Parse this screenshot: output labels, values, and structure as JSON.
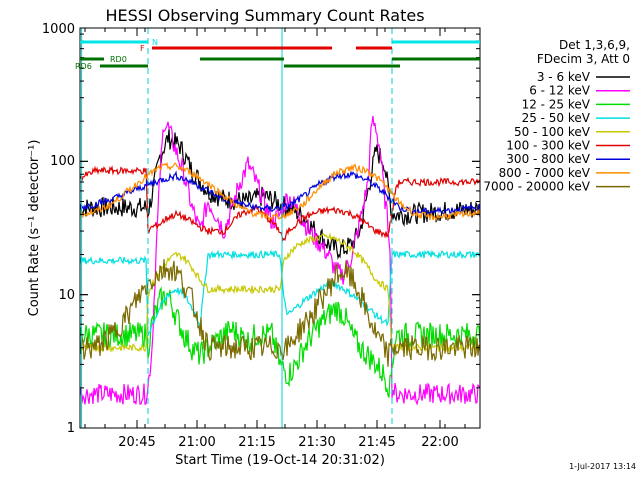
{
  "chart_data": {
    "type": "line",
    "title": "HESSI Observing Summary Count Rates",
    "xlabel": "Start Time (19-Oct-14 20:31:02)",
    "ylabel": "Count Rate (s⁻¹ detector⁻¹)",
    "yscale": "log",
    "ylim": [
      1,
      1000
    ],
    "xlim_minutes_after_start": [
      0,
      100
    ],
    "x_ticks": [
      "20:45",
      "21:00",
      "21:15",
      "21:30",
      "21:45",
      "22:00"
    ],
    "y_ticks": [
      "1",
      "10",
      "100",
      "1000"
    ],
    "legend_header": [
      "Det 1,3,6,9,",
      "FDecim 3, Att 0"
    ],
    "legend_position": "right",
    "footer": "1-Jul-2017 13:14",
    "flags": [
      {
        "label": "N",
        "color": "#00e5e5",
        "segments": [
          [
            0,
            17
          ],
          [
            78,
            100
          ]
        ]
      },
      {
        "label": "F",
        "color": "#e00000",
        "segments": [
          [
            18,
            63
          ],
          [
            69,
            78
          ]
        ]
      },
      {
        "label": "RD0",
        "color": "#007000",
        "segments": [
          [
            0,
            6
          ],
          [
            30,
            51
          ],
          [
            78,
            100
          ]
        ]
      },
      {
        "label": "RD6",
        "color": "#007000",
        "segments": [
          [
            5,
            17
          ],
          [
            51,
            80
          ]
        ]
      }
    ],
    "series": [
      {
        "name": "3 - 6 keV",
        "color": "#000000",
        "x": [
          0,
          10,
          16.5,
          17,
          18,
          20,
          22,
          25,
          28,
          32,
          36,
          42,
          46,
          50,
          52,
          54,
          56,
          58,
          60,
          62,
          64,
          66,
          68,
          70,
          72,
          74,
          76,
          77.5,
          78,
          79,
          82,
          90,
          100
        ],
        "y": [
          45,
          45,
          45,
          42,
          55,
          110,
          150,
          130,
          85,
          60,
          52,
          50,
          55,
          48,
          45,
          42,
          38,
          32,
          28,
          24,
          22,
          22,
          24,
          30,
          60,
          120,
          100,
          50,
          42,
          40,
          40,
          42,
          44
        ]
      },
      {
        "name": "6 - 12 keV",
        "color": "#ff00ff",
        "x": [
          0,
          10,
          16.5,
          17,
          18,
          19,
          20,
          21,
          22,
          24,
          26,
          28,
          30,
          32,
          34,
          36,
          38,
          40,
          42,
          44,
          46,
          48,
          50,
          52,
          54,
          56,
          58,
          60,
          62,
          64,
          66,
          68,
          70,
          72,
          73,
          74,
          75,
          76,
          77.5,
          78,
          79,
          82,
          90,
          100
        ],
        "y": [
          1.8,
          1.8,
          1.8,
          2,
          4,
          20,
          80,
          200,
          180,
          120,
          80,
          45,
          30,
          50,
          40,
          30,
          45,
          70,
          95,
          70,
          50,
          35,
          40,
          55,
          45,
          35,
          28,
          24,
          20,
          15,
          14,
          20,
          35,
          70,
          200,
          180,
          120,
          60,
          25,
          2,
          1.8,
          1.8,
          1.8,
          1.8
        ]
      },
      {
        "name": "12 - 25 keV",
        "color": "#00dd00",
        "x": [
          0,
          10,
          16.5,
          17,
          18,
          20,
          22,
          24,
          26,
          28,
          30,
          32,
          34,
          36,
          38,
          40,
          42,
          44,
          46,
          48,
          50,
          52,
          54,
          56,
          58,
          60,
          62,
          64,
          66,
          68,
          70,
          72,
          74,
          76,
          77.5,
          78,
          79,
          82,
          90,
          100
        ],
        "y": [
          5,
          5,
          5,
          4,
          6,
          9,
          10,
          7,
          5,
          4,
          3.5,
          4,
          4.5,
          5,
          5.5,
          5,
          4.5,
          5,
          5,
          5,
          3,
          2.5,
          3,
          4,
          5,
          6,
          7,
          8,
          7,
          5,
          4,
          3.5,
          3,
          2.5,
          2,
          3,
          5,
          5,
          5,
          5
        ]
      },
      {
        "name": "25 - 50 keV",
        "color": "#00e0e0",
        "x": [
          0,
          10,
          16.5,
          17,
          18,
          20,
          22,
          24,
          26,
          28,
          30,
          32,
          50,
          51,
          52,
          54,
          56,
          58,
          60,
          62,
          64,
          66,
          68,
          70,
          72,
          74,
          77,
          78,
          80,
          100
        ],
        "y": [
          18,
          18,
          18,
          5,
          6,
          8,
          10,
          11,
          10,
          8,
          6,
          20,
          20,
          9,
          7,
          8,
          9,
          10,
          11,
          12,
          12,
          11,
          10,
          9,
          8,
          7,
          6,
          20,
          20,
          20
        ]
      },
      {
        "name": "50 - 100 keV",
        "color": "#c8c800",
        "x": [
          0,
          10,
          16.5,
          17,
          18,
          20,
          22,
          24,
          26,
          28,
          30,
          32,
          50,
          51,
          52,
          54,
          56,
          58,
          60,
          62,
          64,
          66,
          68,
          70,
          72,
          74,
          77,
          78,
          80,
          100
        ],
        "y": [
          4,
          4,
          4,
          10,
          12,
          15,
          18,
          20,
          19,
          16,
          13,
          11,
          11,
          18,
          20,
          23,
          25,
          26,
          27,
          27,
          26,
          24,
          22,
          19,
          16,
          13,
          11,
          4,
          4,
          4
        ]
      },
      {
        "name": "100 - 300 keV",
        "color": "#e00000",
        "x": [
          0,
          4,
          10,
          16.5,
          17,
          18,
          20,
          22,
          24,
          26,
          28,
          30,
          32,
          36,
          40,
          44,
          48,
          50,
          51,
          52,
          54,
          56,
          58,
          60,
          62,
          64,
          66,
          68,
          70,
          72,
          74,
          77,
          78,
          79,
          80,
          90,
          100
        ],
        "y": [
          75,
          85,
          85,
          85,
          30,
          32,
          34,
          38,
          40,
          38,
          35,
          32,
          30,
          30,
          40,
          45,
          35,
          30,
          25,
          30,
          34,
          38,
          40,
          42,
          43,
          43,
          42,
          40,
          37,
          33,
          30,
          28,
          40,
          65,
          70,
          70,
          70
        ]
      },
      {
        "name": "300 - 800 keV",
        "color": "#0000dd",
        "x": [
          0,
          4,
          8,
          12,
          16,
          20,
          24,
          28,
          32,
          36,
          40,
          44,
          48,
          52,
          56,
          60,
          64,
          68,
          72,
          76,
          80,
          84,
          88,
          92,
          96,
          100
        ],
        "y": [
          45,
          48,
          52,
          58,
          65,
          72,
          78,
          70,
          60,
          52,
          48,
          45,
          44,
          46,
          55,
          68,
          78,
          80,
          72,
          58,
          45,
          42,
          42,
          43,
          44,
          45
        ]
      },
      {
        "name": "800 - 7000 keV",
        "color": "#ff8c00",
        "x": [
          0,
          4,
          8,
          12,
          16,
          20,
          24,
          28,
          32,
          36,
          40,
          44,
          48,
          52,
          56,
          60,
          64,
          68,
          72,
          76,
          80,
          84,
          88,
          92,
          96,
          100
        ],
        "y": [
          40,
          42,
          48,
          60,
          75,
          90,
          92,
          82,
          68,
          55,
          45,
          40,
          38,
          40,
          48,
          65,
          82,
          90,
          85,
          68,
          48,
          40,
          38,
          39,
          40,
          42
        ]
      },
      {
        "name": "7000 - 20000 keV",
        "color": "#7a6a00",
        "x": [
          0,
          4,
          8,
          10,
          12,
          14,
          16,
          18,
          20,
          22,
          24,
          26,
          28,
          30,
          32,
          50,
          51,
          52,
          54,
          56,
          58,
          60,
          62,
          64,
          66,
          68,
          70,
          72,
          74,
          76,
          77,
          78,
          80,
          90,
          100
        ],
        "y": [
          4,
          4,
          5,
          6,
          7,
          9,
          11,
          13,
          15,
          16,
          15,
          12,
          9,
          6,
          4,
          4,
          4,
          4,
          5,
          6,
          7,
          9,
          11,
          14,
          15,
          13,
          10,
          7,
          5,
          4,
          3.5,
          4,
          4,
          4,
          4
        ]
      }
    ]
  }
}
